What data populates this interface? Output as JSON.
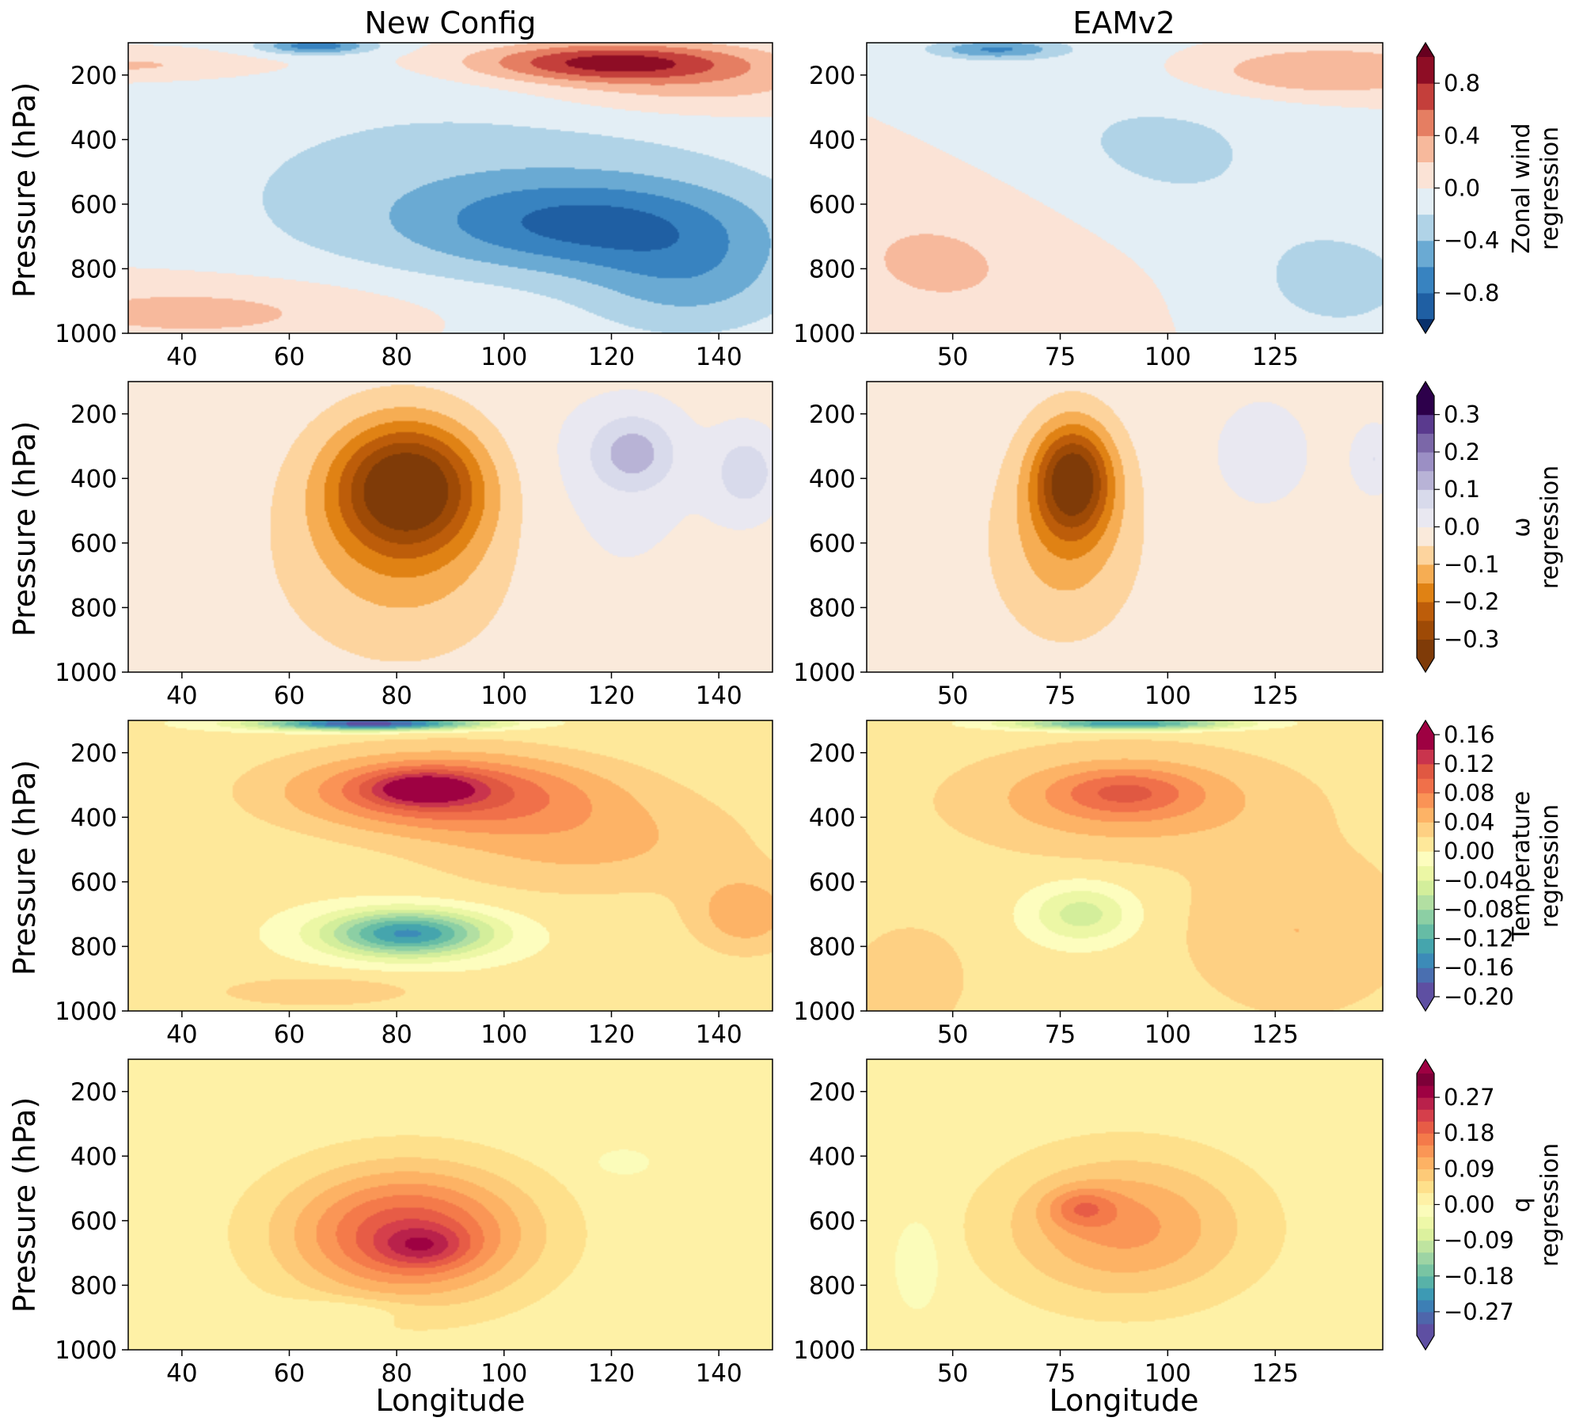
{
  "columns": [
    "New Config",
    "EAMv2"
  ],
  "ylabel": "Pressure (hPa)",
  "xlabel": "Longitude",
  "chart_data": [
    {
      "type": "contour",
      "variable": "Zonal wind",
      "colorbar": {
        "label": [
          "Zonal wind",
          "regression"
        ],
        "levels": [
          -1.0,
          -0.8,
          -0.6,
          -0.4,
          -0.2,
          0.0,
          0.2,
          0.4,
          0.6,
          0.8,
          1.0
        ],
        "ticks": [
          "0.8",
          "0.4",
          "0.0",
          "−0.4",
          "−0.8"
        ],
        "tick_values": [
          0.8,
          0.4,
          0.0,
          -0.4,
          -0.8
        ],
        "colors": [
          "#1f5fa3",
          "#3883c0",
          "#6aaad3",
          "#b0d3e7",
          "#e3eef5",
          "#fbe3d6",
          "#f7b99c",
          "#e57e62",
          "#c43f3b",
          "#8e0d25"
        ],
        "extend_colors": [
          "#08306b",
          "#67001f"
        ]
      },
      "panels": [
        {
          "column": "New Config",
          "xlim": [
            30,
            150
          ],
          "ylim": [
            1000,
            100
          ],
          "xticks": [
            "40",
            "60",
            "80",
            "100",
            "120",
            "140"
          ],
          "xtick_values": [
            40,
            60,
            80,
            100,
            120,
            140
          ],
          "yticks": [
            "200",
            "400",
            "600",
            "800",
            "1000"
          ],
          "ytick_values": [
            200,
            400,
            600,
            800,
            1000
          ],
          "background": 0.0,
          "blobs": [
            {
              "lon": 45,
              "p": 930,
              "wlon": 40,
              "wp": 110,
              "amp": 0.3
            },
            {
              "lon": 30,
              "p": 170,
              "wlon": 25,
              "wp": 40,
              "amp": 0.25
            },
            {
              "lon": 95,
              "p": 560,
              "wlon": 60,
              "wp": 350,
              "amp": -0.3
            },
            {
              "lon": 115,
              "p": 660,
              "wlon": 30,
              "wp": 140,
              "amp": -0.6
            },
            {
              "lon": 135,
              "p": 830,
              "wlon": 20,
              "wp": 180,
              "amp": -0.4
            },
            {
              "lon": 65,
              "p": 110,
              "wlon": 10,
              "wp": 25,
              "amp": -0.7
            },
            {
              "lon": 120,
              "p": 160,
              "wlon": 25,
              "wp": 60,
              "amp": 0.9
            },
            {
              "lon": 135,
              "p": 240,
              "wlon": 30,
              "wp": 90,
              "amp": 0.3
            }
          ]
        },
        {
          "column": "EAMv2",
          "xlim": [
            30,
            150
          ],
          "ylim": [
            1000,
            100
          ],
          "xticks": [
            "50",
            "75",
            "100",
            "125"
          ],
          "xtick_values": [
            50,
            75,
            100,
            125
          ],
          "yticks": [
            "200",
            "400",
            "600",
            "800",
            "1000"
          ],
          "ytick_values": [
            200,
            400,
            600,
            800,
            1000
          ],
          "background": 0.0,
          "blobs": [
            {
              "lon": 50,
              "p": 750,
              "wlon": 40,
              "wp": 300,
              "amp": 0.25
            },
            {
              "lon": 95,
              "p": 450,
              "wlon": 45,
              "wp": 300,
              "amp": -0.25
            },
            {
              "lon": 140,
              "p": 850,
              "wlon": 25,
              "wp": 200,
              "amp": -0.25
            },
            {
              "lon": 60,
              "p": 120,
              "wlon": 15,
              "wp": 30,
              "amp": -0.6
            },
            {
              "lon": 135,
              "p": 190,
              "wlon": 30,
              "wp": 80,
              "amp": 0.45
            }
          ]
        }
      ]
    },
    {
      "type": "contour",
      "variable": "omega",
      "colorbar": {
        "label": [
          "ω",
          "regression"
        ],
        "levels": [
          -0.35,
          -0.3,
          -0.25,
          -0.2,
          -0.15,
          -0.1,
          -0.05,
          0.0,
          0.05,
          0.1,
          0.15,
          0.2,
          0.25,
          0.3,
          0.35
        ],
        "ticks": [
          "0.3",
          "0.2",
          "0.1",
          "0.0",
          "−0.1",
          "−0.2",
          "−0.3"
        ],
        "tick_values": [
          0.3,
          0.2,
          0.1,
          0.0,
          -0.1,
          -0.2,
          -0.3
        ],
        "colors": [
          "#7f3b08",
          "#9e4a06",
          "#bd5d0a",
          "#e08214",
          "#f6ad53",
          "#fdd49e",
          "#faeadb",
          "#e9e8f1",
          "#d8daeb",
          "#b8b3d6",
          "#9b8fc4",
          "#7b67a8",
          "#5a3a8e",
          "#2d004b"
        ],
        "extend_colors": [
          "#7f3b08",
          "#2d004b"
        ]
      },
      "panels": [
        {
          "column": "New Config",
          "xlim": [
            30,
            150
          ],
          "ylim": [
            1000,
            100
          ],
          "xticks": [
            "40",
            "60",
            "80",
            "100",
            "120",
            "140"
          ],
          "xtick_values": [
            40,
            60,
            80,
            100,
            120,
            140
          ],
          "yticks": [
            "200",
            "400",
            "600",
            "800",
            "1000"
          ],
          "ytick_values": [
            200,
            400,
            600,
            800,
            1000
          ],
          "background": -0.02,
          "blobs": [
            {
              "lon": 82,
              "p": 420,
              "wlon": 14,
              "wp": 200,
              "amp": -0.33
            },
            {
              "lon": 82,
              "p": 650,
              "wlon": 22,
              "wp": 300,
              "amp": -0.1
            },
            {
              "lon": 124,
              "p": 320,
              "wlon": 8,
              "wp": 120,
              "amp": 0.13
            },
            {
              "lon": 145,
              "p": 380,
              "wlon": 6,
              "wp": 120,
              "amp": 0.1
            },
            {
              "lon": 112,
              "p": 500,
              "wlon": 30,
              "wp": 400,
              "amp": 0.03
            }
          ]
        },
        {
          "column": "EAMv2",
          "xlim": [
            30,
            150
          ],
          "ylim": [
            1000,
            100
          ],
          "xticks": [
            "50",
            "75",
            "100",
            "125"
          ],
          "xtick_values": [
            50,
            75,
            100,
            125
          ],
          "yticks": [
            "200",
            "400",
            "600",
            "800",
            "1000"
          ],
          "ytick_values": [
            200,
            400,
            600,
            800,
            1000
          ],
          "background": -0.02,
          "blobs": [
            {
              "lon": 78,
              "p": 400,
              "wlon": 9,
              "wp": 170,
              "amp": -0.3
            },
            {
              "lon": 76,
              "p": 600,
              "wlon": 16,
              "wp": 280,
              "amp": -0.1
            },
            {
              "lon": 122,
              "p": 320,
              "wlon": 10,
              "wp": 150,
              "amp": 0.06
            },
            {
              "lon": 148,
              "p": 340,
              "wlon": 5,
              "wp": 100,
              "amp": 0.07
            }
          ]
        }
      ]
    },
    {
      "type": "contour",
      "variable": "Temperature",
      "colorbar": {
        "label": [
          "Temperature",
          "regression"
        ],
        "levels": [
          -0.2,
          -0.18,
          -0.16,
          -0.14,
          -0.12,
          -0.1,
          -0.08,
          -0.06,
          -0.04,
          -0.02,
          0.0,
          0.02,
          0.04,
          0.06,
          0.08,
          0.1,
          0.12,
          0.14,
          0.16
        ],
        "ticks": [
          "0.16",
          "0.12",
          "0.08",
          "0.04",
          "0.00",
          "−0.04",
          "−0.08",
          "−0.12",
          "−0.16",
          "−0.20"
        ],
        "tick_values": [
          0.16,
          0.12,
          0.08,
          0.04,
          0.0,
          -0.04,
          -0.08,
          -0.12,
          -0.16,
          -0.2
        ],
        "colors": [
          "#5e4fa2",
          "#4a6fb0",
          "#3c8bb8",
          "#45a5ad",
          "#66bca5",
          "#8ccfa4",
          "#b2dfa2",
          "#d3ee9b",
          "#ecf7a5",
          "#fdfdbe",
          "#fee89a",
          "#fed083",
          "#fdb366",
          "#fa9356",
          "#f0704a",
          "#e05842",
          "#c9344d",
          "#9e0142"
        ],
        "extend_colors": [
          "#5e4fa2",
          "#9e0142"
        ]
      },
      "panels": [
        {
          "column": "New Config",
          "xlim": [
            30,
            150
          ],
          "ylim": [
            1000,
            100
          ],
          "xticks": [
            "40",
            "60",
            "80",
            "100",
            "120",
            "140"
          ],
          "xtick_values": [
            40,
            60,
            80,
            100,
            120,
            140
          ],
          "yticks": [
            "200",
            "400",
            "600",
            "800",
            "1000"
          ],
          "ytick_values": [
            200,
            400,
            600,
            800,
            1000
          ],
          "background": 0.005,
          "blobs": [
            {
              "lon": 88,
              "p": 320,
              "wlon": 28,
              "wp": 120,
              "amp": 0.1
            },
            {
              "lon": 115,
              "p": 480,
              "wlon": 30,
              "wp": 160,
              "amp": 0.04
            },
            {
              "lon": 85,
              "p": 310,
              "wlon": 10,
              "wp": 50,
              "amp": 0.08
            },
            {
              "lon": 82,
              "p": 760,
              "wlon": 15,
              "wp": 70,
              "amp": -0.15
            },
            {
              "lon": 75,
              "p": 110,
              "wlon": 20,
              "wp": 20,
              "amp": -0.2
            },
            {
              "lon": 65,
              "p": 940,
              "wlon": 20,
              "wp": 50,
              "amp": 0.03
            },
            {
              "lon": 145,
              "p": 700,
              "wlon": 10,
              "wp": 120,
              "amp": 0.05
            }
          ]
        },
        {
          "column": "EAMv2",
          "xlim": [
            30,
            150
          ],
          "ylim": [
            1000,
            100
          ],
          "xticks": [
            "50",
            "75",
            "100",
            "125"
          ],
          "xtick_values": [
            50,
            75,
            100,
            125
          ],
          "yticks": [
            "200",
            "400",
            "600",
            "800",
            "1000"
          ],
          "ytick_values": [
            200,
            400,
            600,
            800,
            1000
          ],
          "background": 0.01,
          "blobs": [
            {
              "lon": 90,
              "p": 350,
              "wlon": 35,
              "wp": 150,
              "amp": 0.05
            },
            {
              "lon": 90,
              "p": 320,
              "wlon": 16,
              "wp": 70,
              "amp": 0.05
            },
            {
              "lon": 130,
              "p": 750,
              "wlon": 25,
              "wp": 250,
              "amp": 0.03
            },
            {
              "lon": 80,
              "p": 700,
              "wlon": 12,
              "wp": 90,
              "amp": -0.06
            },
            {
              "lon": 90,
              "p": 110,
              "wlon": 25,
              "wp": 20,
              "amp": -0.15
            },
            {
              "lon": 40,
              "p": 900,
              "wlon": 12,
              "wp": 150,
              "amp": 0.03
            }
          ]
        }
      ]
    },
    {
      "type": "contour",
      "variable": "q",
      "colorbar": {
        "label": [
          "q",
          "regression"
        ],
        "levels": [
          -0.33,
          -0.3,
          -0.27,
          -0.24,
          -0.21,
          -0.18,
          -0.15,
          -0.12,
          -0.09,
          -0.06,
          -0.03,
          0.0,
          0.03,
          0.06,
          0.09,
          0.12,
          0.15,
          0.18,
          0.21,
          0.24,
          0.27,
          0.3,
          0.33
        ],
        "ticks": [
          "0.27",
          "0.18",
          "0.09",
          "0.00",
          "−0.09",
          "−0.18",
          "−0.27"
        ],
        "tick_values": [
          0.27,
          0.18,
          0.09,
          0.0,
          -0.09,
          -0.18,
          -0.27
        ],
        "colors": [
          "#5e4fa2",
          "#4e66ab",
          "#3d7fb5",
          "#3d9ab4",
          "#58b2a8",
          "#79c4a3",
          "#9dd4a4",
          "#bfe4a0",
          "#dcf19e",
          "#eef8a8",
          "#fbfcba",
          "#fef1a6",
          "#fee08b",
          "#fdca78",
          "#fdb264",
          "#fa9656",
          "#f47a4a",
          "#e75c46",
          "#d53f4b",
          "#b9214b",
          "#9e0142",
          "#7d0038"
        ],
        "extend_colors": [
          "#5e4fa2",
          "#9e0142"
        ]
      },
      "panels": [
        {
          "column": "New Config",
          "xlim": [
            30,
            150
          ],
          "ylim": [
            1000,
            100
          ],
          "xticks": [
            "40",
            "60",
            "80",
            "100",
            "120",
            "140"
          ],
          "xtick_values": [
            40,
            60,
            80,
            100,
            120,
            140
          ],
          "yticks": [
            "200",
            "400",
            "600",
            "800",
            "1000"
          ],
          "ytick_values": [
            200,
            400,
            600,
            800,
            1000
          ],
          "background": 0.01,
          "blobs": [
            {
              "lon": 82,
              "p": 640,
              "wlon": 22,
              "wp": 200,
              "amp": 0.2
            },
            {
              "lon": 85,
              "p": 680,
              "wlon": 8,
              "wp": 60,
              "amp": 0.08
            },
            {
              "lon": 70,
              "p": 880,
              "wlon": 12,
              "wp": 40,
              "amp": -0.04
            },
            {
              "lon": 122,
              "p": 420,
              "wlon": 5,
              "wp": 40,
              "amp": -0.03
            }
          ]
        },
        {
          "column": "EAMv2",
          "xlim": [
            30,
            150
          ],
          "ylim": [
            1000,
            100
          ],
          "xticks": [
            "50",
            "75",
            "100",
            "125"
          ],
          "xtick_values": [
            50,
            75,
            100,
            125
          ],
          "yticks": [
            "200",
            "400",
            "600",
            "800",
            "1000"
          ],
          "ytick_values": [
            200,
            400,
            600,
            800,
            1000
          ],
          "background": 0.01,
          "blobs": [
            {
              "lon": 90,
              "p": 620,
              "wlon": 28,
              "wp": 220,
              "amp": 0.12
            },
            {
              "lon": 80,
              "p": 560,
              "wlon": 8,
              "wp": 60,
              "amp": 0.08
            },
            {
              "lon": 42,
              "p": 730,
              "wlon": 5,
              "wp": 130,
              "amp": -0.04
            }
          ]
        }
      ]
    }
  ]
}
